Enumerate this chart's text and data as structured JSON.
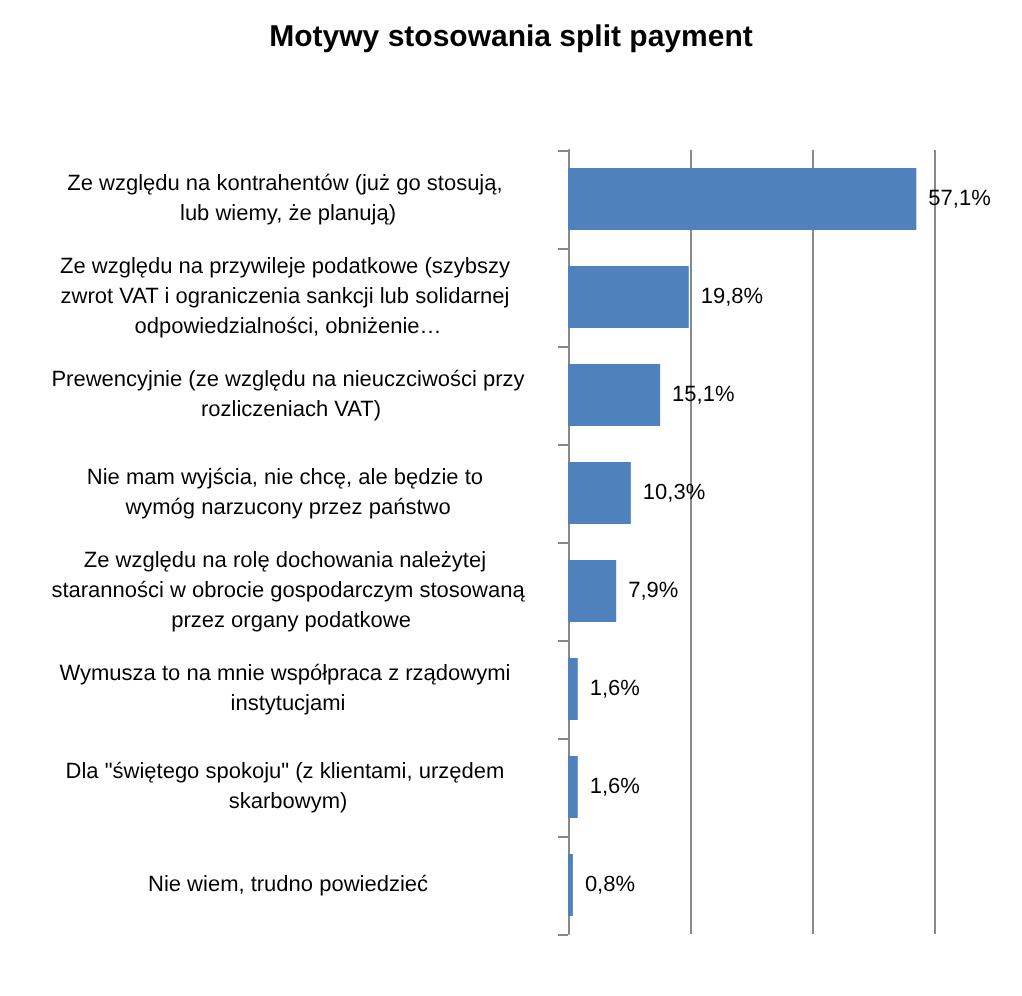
{
  "chart_data": {
    "type": "bar",
    "orientation": "horizontal",
    "title": "Motywy stosowania split payment",
    "categories": [
      "Ze względu na kontrahentów (już go stosują, lub wiemy, że planują)",
      "Ze względu na przywileje podatkowe (szybszy zwrot VAT i ograniczenia sankcji lub solidarnej odpowiedzialności, obniżenie…",
      "Prewencyjnie (ze względu na nieuczciwości przy rozliczeniach VAT)",
      "Nie mam wyjścia, nie chcę, ale będzie to wymóg narzucony przez państwo",
      "Ze względu na rolę dochowania należytej staranności w obrocie gospodarczym stosowaną przez organy podatkowe",
      "Wymusza to na mnie współpraca z rządowymi instytucjami",
      "Dla \"świętego spokoju\" (z klientami, urzędem skarbowym)",
      "Nie wiem, trudno powiedzieć"
    ],
    "values": [
      57.1,
      19.8,
      15.1,
      10.3,
      7.9,
      1.6,
      1.6,
      0.8
    ],
    "value_labels": [
      "57,1%",
      "19,8%",
      "15,1%",
      "10,3%",
      "7,9%",
      "1,6%",
      "1,6%",
      "0,8%"
    ],
    "color": "#4f81bd",
    "xlim": [
      0,
      60
    ],
    "xticks": [
      {
        "value": 0,
        "label": null
      },
      {
        "value": 20,
        "label": null
      },
      {
        "value": 40,
        "label": null
      },
      {
        "value": 60,
        "label": null
      }
    ],
    "grid": "x"
  }
}
